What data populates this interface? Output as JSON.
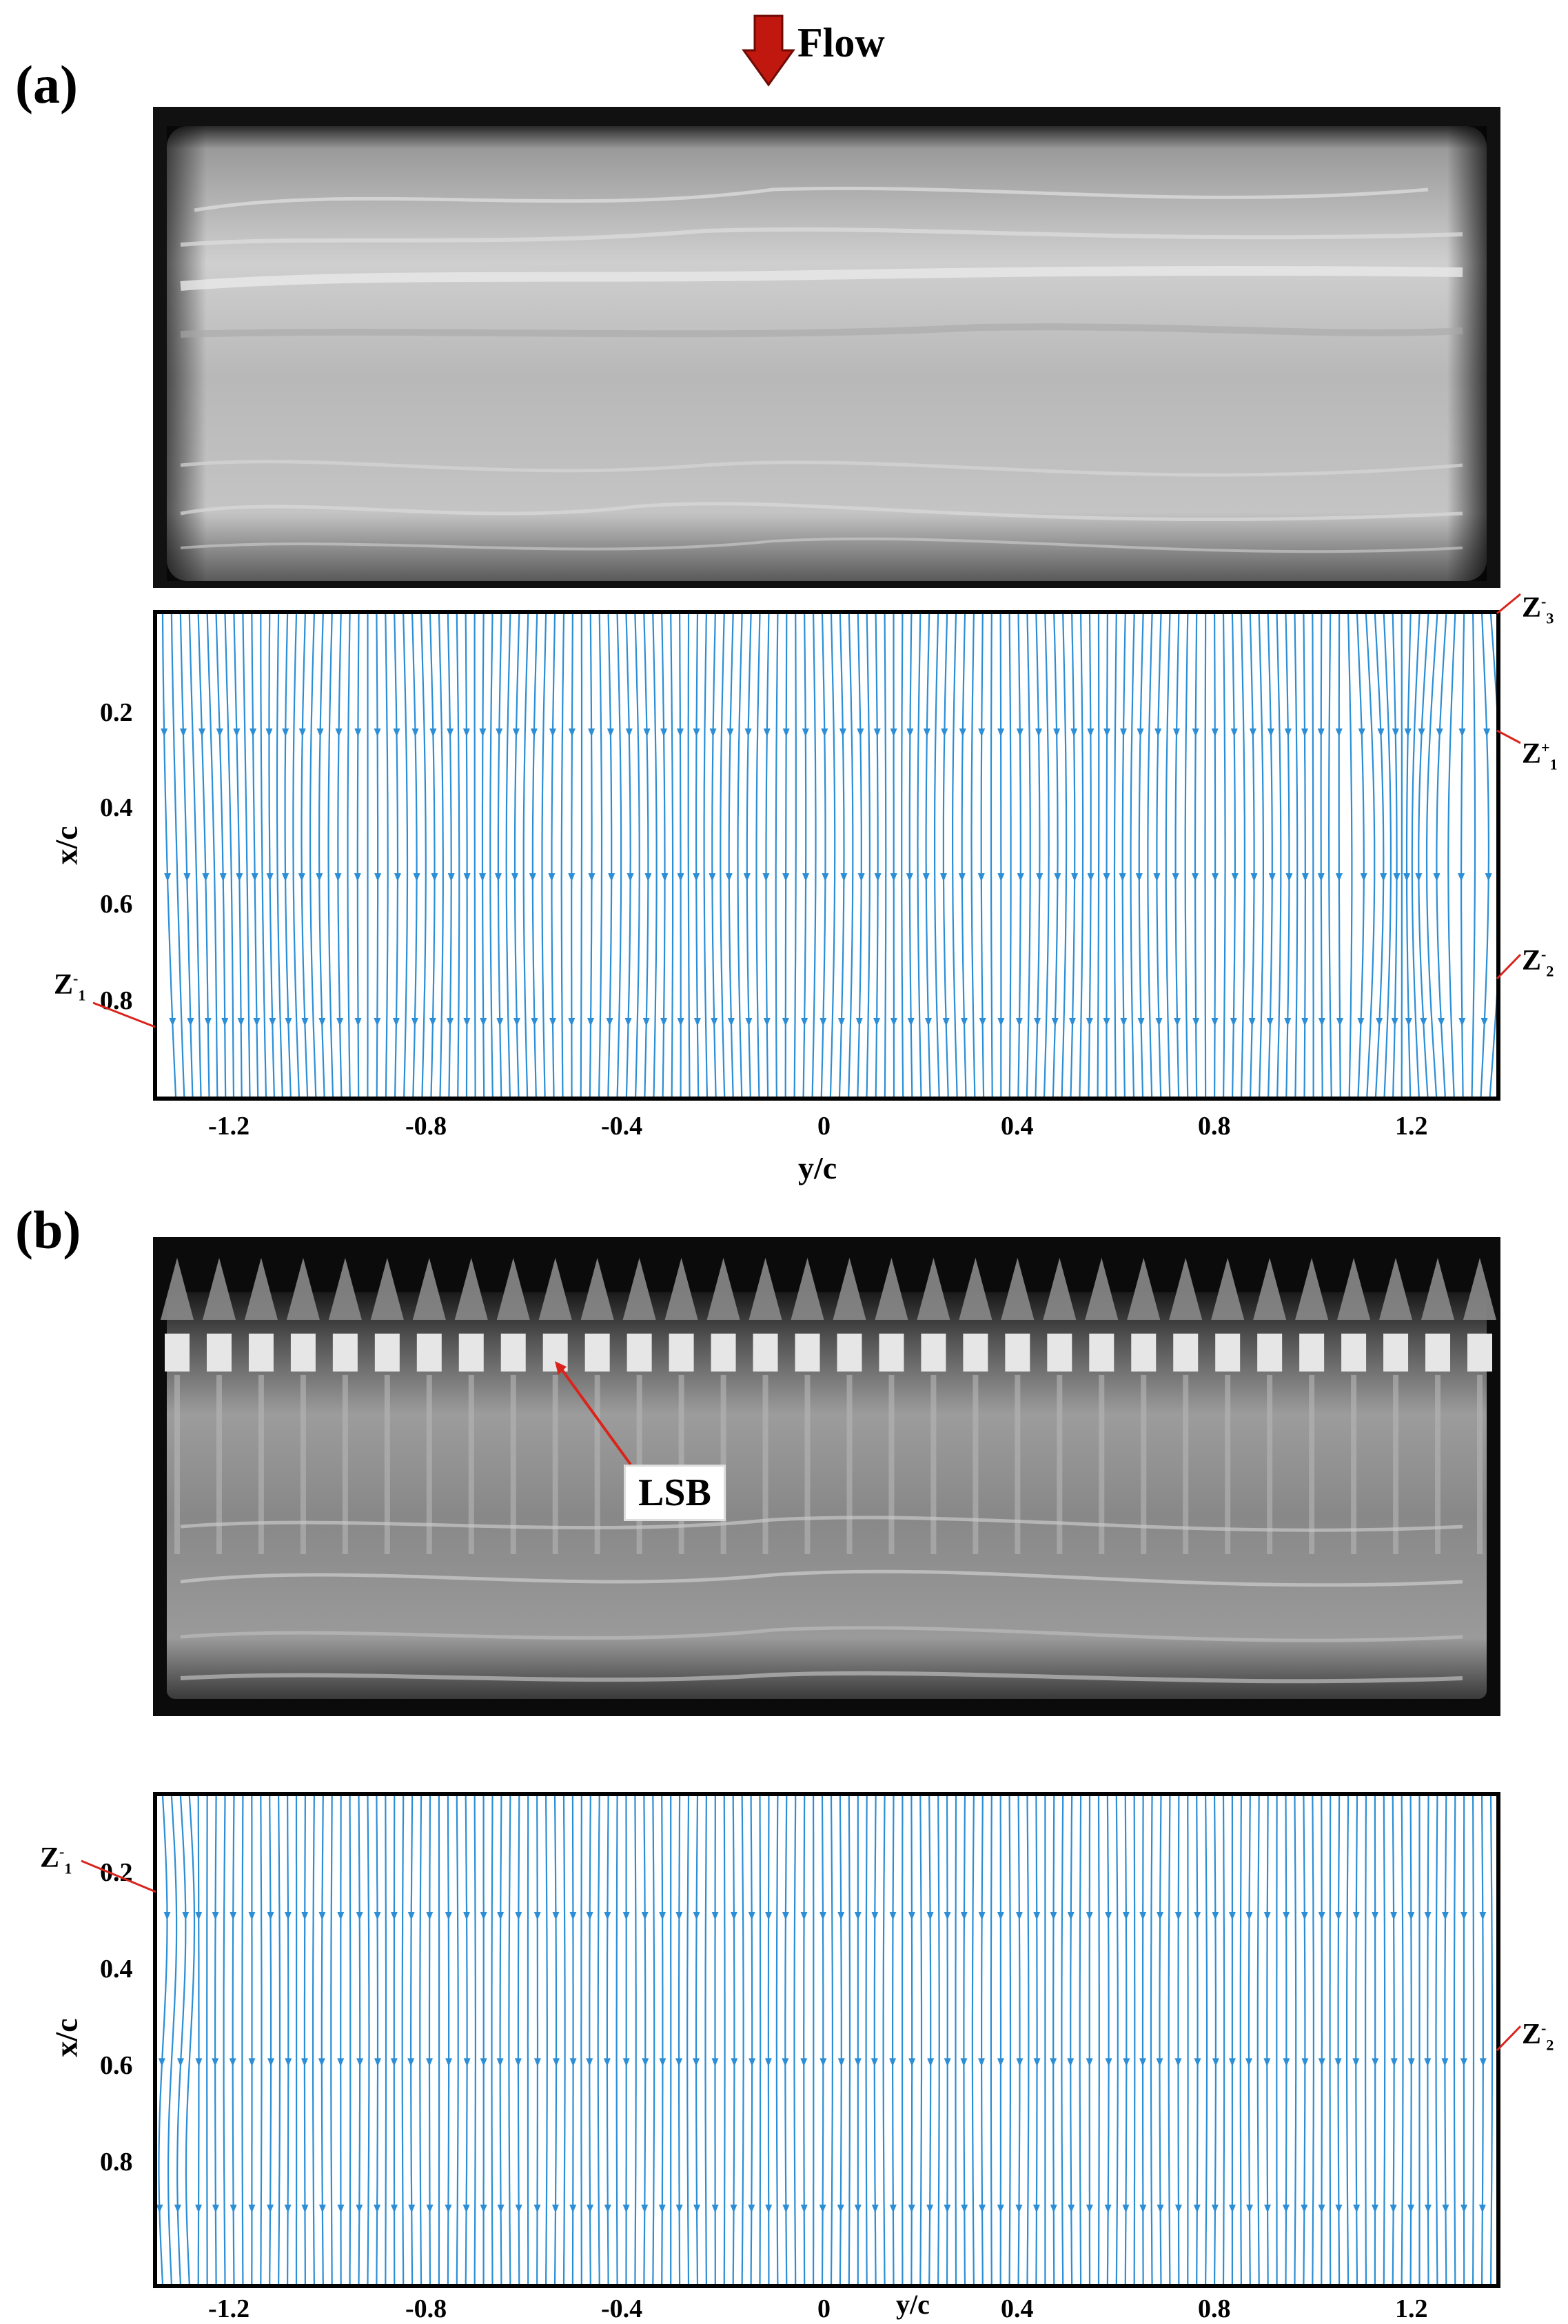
{
  "figure": {
    "flow_label": "Flow",
    "panels": [
      {
        "label": "(a)",
        "plot": {
          "xlabel": "y/c",
          "ylabel": "x/c",
          "xticks": [
            "-1.2",
            "-0.8",
            "-0.4",
            "0",
            "0.4",
            "0.8",
            "1.2"
          ],
          "yticks": [
            "0.2",
            "0.4",
            "0.6",
            "0.8"
          ],
          "annotations": [
            {
              "main": "Z",
              "sup": "-",
              "sub": "3"
            },
            {
              "main": "Z",
              "sup": "+",
              "sub": "1"
            },
            {
              "main": "Z",
              "sup": "-",
              "sub": "2"
            },
            {
              "main": "Z",
              "sup": "-",
              "sub": "1"
            }
          ]
        }
      },
      {
        "label": "(b)",
        "photo_annotation": "LSB",
        "plot": {
          "xlabel": "y/c",
          "ylabel": "x/c",
          "xticks": [
            "-1.2",
            "-0.8",
            "-0.4",
            "0",
            "0.4",
            "0.8",
            "1.2"
          ],
          "yticks": [
            "0.2",
            "0.4",
            "0.6",
            "0.8"
          ],
          "annotations": [
            {
              "main": "Z",
              "sup": "-",
              "sub": "1"
            },
            {
              "main": "Z",
              "sup": "-",
              "sub": "2"
            }
          ]
        }
      }
    ],
    "colors": {
      "streamline": "#2b8ed6",
      "arrow": "#c0170f",
      "annotation_line": "#d9241c"
    }
  },
  "chart_data": [
    {
      "type": "streamline",
      "xlabel": "y/c",
      "ylabel": "x/c",
      "xlim": [
        -1.38,
        1.38
      ],
      "ylim": [
        0.0,
        1.0
      ],
      "y_inverted": true
    },
    {
      "type": "streamline",
      "xlabel": "y/c",
      "ylabel": "x/c",
      "xlim": [
        -1.38,
        1.38
      ],
      "ylim": [
        0.0,
        1.0
      ],
      "y_inverted": true
    }
  ]
}
